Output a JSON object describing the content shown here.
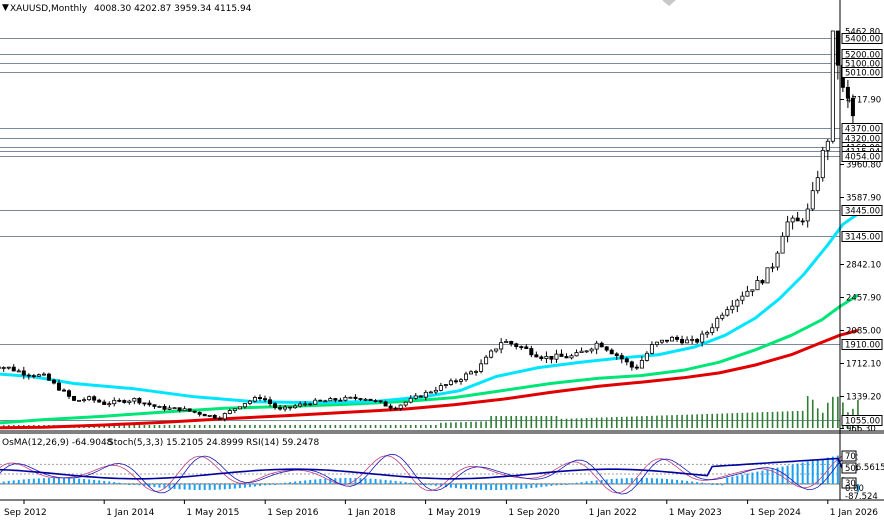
{
  "header": {
    "symbol_label": "XAUUSD,Monthly",
    "ohlc": "4008.30 4202.87 3959.34 4115.94"
  },
  "sub_header": {
    "osma": "OsMA(12,26,9) -64.9048",
    "stoch": "Stoch(5,3,3) 15.2105 24.8999",
    "rsi": "RSI(14) 59.2478"
  },
  "colors": {
    "background": "#ffffff",
    "candles": "#000000",
    "ema_fast": "#00e5ff",
    "ema_mid": "#00e676",
    "ema_slow": "#e00000",
    "level_lines": "#7a8a9a",
    "volume": "#2e7d32",
    "osma_hist": "#1ea0f0",
    "stoch_main": "#1a1ab8",
    "stoch_signal": "#c04080",
    "rsi": "#0000a0"
  },
  "chart_data": {
    "type": "candlestick",
    "symbol": "XAUUSD",
    "timeframe": "Monthly",
    "last_bar": {
      "open": 4008.3,
      "high": 4202.87,
      "low": 3959.34,
      "close": 4115.94
    },
    "price_axis": {
      "ticks": [
        {
          "value": 4717.9,
          "label": "4717.90"
        },
        {
          "value": 3960.8,
          "label": "3960.80"
        },
        {
          "value": 3587.9,
          "label": "3587.90"
        },
        {
          "value": 2842.1,
          "label": "2842.10"
        },
        {
          "value": 2457.9,
          "label": "2457.90"
        },
        {
          "value": 2085.0,
          "label": "2085.00"
        },
        {
          "value": 1712.1,
          "label": "1712.10"
        },
        {
          "value": 1339.2,
          "label": "1339.20"
        },
        {
          "value": 966.3,
          "label": "966.30"
        }
      ]
    },
    "levels": [
      {
        "value": 5462.8,
        "label": "5462.80",
        "style": "normal"
      },
      {
        "value": 5400.0,
        "label": "5400.00",
        "style": "boxed"
      },
      {
        "value": 5200.0,
        "label": "5200.00",
        "style": "boxed"
      },
      {
        "value": 5100.0,
        "label": "5100.00",
        "style": "boxed"
      },
      {
        "value": 5010.0,
        "label": "5010.00",
        "style": "boxed"
      },
      {
        "value": 4370.0,
        "label": "4370.00",
        "style": "boxed"
      },
      {
        "value": 4320.0,
        "label": "4320.00",
        "style": "boxed"
      },
      {
        "value": 4160.0,
        "label": "4160.00",
        "style": "boxed"
      },
      {
        "value": 4115.94,
        "label": "4115.94",
        "style": "current"
      },
      {
        "value": 4054.0,
        "label": "4054.00",
        "style": "boxed"
      },
      {
        "value": 3445.0,
        "label": "3445.00",
        "style": "boxed"
      },
      {
        "value": 3145.0,
        "label": "3145.00",
        "style": "boxed"
      },
      {
        "value": 1910.0,
        "label": "1910.00",
        "style": "boxed"
      },
      {
        "value": 1055.0,
        "label": "1055.00",
        "style": "boxed"
      }
    ],
    "time_axis": [
      {
        "value": 2012.67,
        "label": "Sep 2012"
      },
      {
        "value": 2014.0,
        "label": "1 Jan 2014"
      },
      {
        "value": 2015.33,
        "label": "1 May 2015"
      },
      {
        "value": 2016.67,
        "label": "1 Sep 2016"
      },
      {
        "value": 2018.0,
        "label": "1 Jan 2018"
      },
      {
        "value": 2019.33,
        "label": "1 May 2019"
      },
      {
        "value": 2020.67,
        "label": "1 Sep 2020"
      },
      {
        "value": 2022.0,
        "label": "1 Jan 2022"
      },
      {
        "value": 2023.33,
        "label": "1 May 2023"
      },
      {
        "value": 2024.67,
        "label": "1 Sep 2024"
      },
      {
        "value": 2026.0,
        "label": "1 Jan 2026"
      }
    ],
    "close_path": [
      [
        2012.0,
        1700
      ],
      [
        2012.4,
        1660
      ],
      [
        2012.67,
        1600
      ],
      [
        2013.0,
        1560
      ],
      [
        2013.3,
        1400
      ],
      [
        2013.5,
        1280
      ],
      [
        2013.75,
        1310
      ],
      [
        2014.0,
        1250
      ],
      [
        2014.5,
        1300
      ],
      [
        2014.9,
        1200
      ],
      [
        2015.3,
        1180
      ],
      [
        2015.9,
        1080
      ],
      [
        2016.3,
        1250
      ],
      [
        2016.6,
        1330
      ],
      [
        2016.9,
        1170
      ],
      [
        2017.4,
        1260
      ],
      [
        2017.9,
        1300
      ],
      [
        2018.3,
        1320
      ],
      [
        2018.8,
        1200
      ],
      [
        2019.1,
        1300
      ],
      [
        2019.5,
        1420
      ],
      [
        2019.8,
        1500
      ],
      [
        2020.2,
        1650
      ],
      [
        2020.6,
        1950
      ],
      [
        2020.9,
        1880
      ],
      [
        2021.3,
        1770
      ],
      [
        2021.8,
        1780
      ],
      [
        2022.2,
        1930
      ],
      [
        2022.6,
        1750
      ],
      [
        2022.8,
        1640
      ],
      [
        2023.1,
        1900
      ],
      [
        2023.4,
        1980
      ],
      [
        2023.8,
        1930
      ],
      [
        2024.0,
        2060
      ],
      [
        2024.3,
        2330
      ],
      [
        2024.6,
        2500
      ],
      [
        2024.9,
        2650
      ],
      [
        2025.1,
        2850
      ],
      [
        2025.3,
        3300
      ],
      [
        2025.5,
        3300
      ],
      [
        2025.7,
        3450
      ],
      [
        2025.85,
        3900
      ],
      [
        2026.0,
        4300
      ],
      [
        2026.08,
        5400
      ],
      [
        2026.17,
        5100
      ],
      [
        2026.25,
        4800
      ],
      [
        2026.33,
        4700
      ],
      [
        2026.42,
        4500
      ],
      [
        2026.5,
        4115.94
      ]
    ],
    "ema_fast": [
      [
        2012.0,
        1600
      ],
      [
        2012.8,
        1560
      ],
      [
        2013.5,
        1480
      ],
      [
        2014.5,
        1420
      ],
      [
        2015.5,
        1330
      ],
      [
        2016.5,
        1270
      ],
      [
        2017.5,
        1260
      ],
      [
        2018.5,
        1275
      ],
      [
        2019.3,
        1330
      ],
      [
        2019.9,
        1400
      ],
      [
        2020.5,
        1560
      ],
      [
        2021.2,
        1660
      ],
      [
        2021.9,
        1720
      ],
      [
        2022.5,
        1760
      ],
      [
        2023.2,
        1800
      ],
      [
        2023.8,
        1880
      ],
      [
        2024.3,
        2020
      ],
      [
        2024.8,
        2220
      ],
      [
        2025.2,
        2440
      ],
      [
        2025.6,
        2720
      ],
      [
        2026.0,
        3050
      ],
      [
        2026.25,
        3280
      ],
      [
        2026.5,
        3400
      ]
    ],
    "ema_mid": [
      [
        2012.0,
        1010
      ],
      [
        2013.0,
        1060
      ],
      [
        2014.0,
        1100
      ],
      [
        2015.0,
        1150
      ],
      [
        2016.0,
        1195
      ],
      [
        2017.0,
        1215
      ],
      [
        2018.0,
        1240
      ],
      [
        2019.0,
        1275
      ],
      [
        2019.8,
        1320
      ],
      [
        2020.6,
        1400
      ],
      [
        2021.4,
        1480
      ],
      [
        2022.2,
        1540
      ],
      [
        2022.9,
        1570
      ],
      [
        2023.6,
        1630
      ],
      [
        2024.2,
        1720
      ],
      [
        2024.8,
        1850
      ],
      [
        2025.4,
        2020
      ],
      [
        2025.9,
        2200
      ],
      [
        2026.2,
        2350
      ],
      [
        2026.5,
        2480
      ]
    ],
    "ema_slow": [
      [
        2012.0,
        955
      ],
      [
        2013.0,
        975
      ],
      [
        2014.0,
        1000
      ],
      [
        2015.0,
        1030
      ],
      [
        2016.0,
        1070
      ],
      [
        2017.0,
        1105
      ],
      [
        2018.0,
        1145
      ],
      [
        2019.0,
        1185
      ],
      [
        2019.8,
        1235
      ],
      [
        2020.6,
        1300
      ],
      [
        2021.4,
        1380
      ],
      [
        2022.2,
        1450
      ],
      [
        2022.9,
        1495
      ],
      [
        2023.6,
        1545
      ],
      [
        2024.2,
        1600
      ],
      [
        2024.8,
        1690
      ],
      [
        2025.4,
        1800
      ],
      [
        2025.9,
        1930
      ],
      [
        2026.2,
        2020
      ],
      [
        2026.5,
        2080
      ]
    ],
    "indicator_panel": {
      "ticks": [
        {
          "value": 216.5615,
          "label": "216.5615"
        },
        {
          "value": 70,
          "label": "70"
        },
        {
          "value": 50,
          "label": "50"
        },
        {
          "value": 30,
          "label": "30"
        },
        {
          "value": 0,
          "label": "0.00"
        },
        {
          "value": -87.524,
          "label": "-87.524"
        }
      ]
    }
  }
}
